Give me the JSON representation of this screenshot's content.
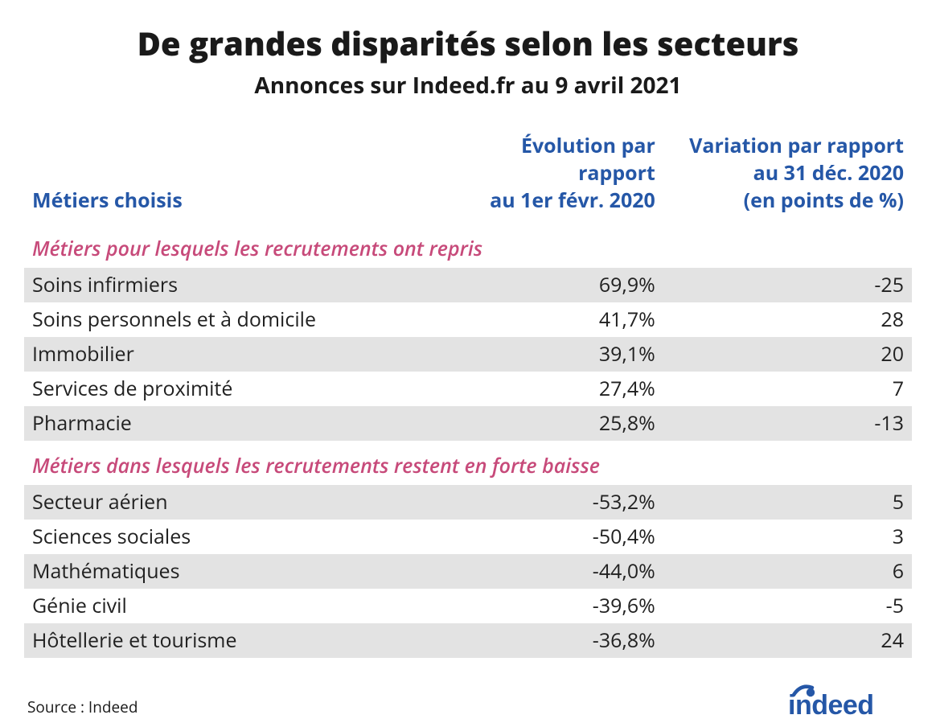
{
  "title": "De grandes disparités selon les secteurs",
  "subtitle": "Annonces sur Indeed.fr au 9 avril 2021",
  "columns": {
    "a": "Métiers choisis",
    "b": "Évolution par\nrapport\nau 1er févr. 2020",
    "c": "Variation par rapport\nau 31 déc. 2020\n(en points de %)"
  },
  "sections": [
    {
      "title": "Métiers pour lesquels les recrutements ont repris",
      "rows": [
        {
          "label": "Soins infirmiers",
          "evolution": "69,9%",
          "variation": "-25"
        },
        {
          "label": "Soins personnels et à domicile",
          "evolution": "41,7%",
          "variation": "28"
        },
        {
          "label": "Immobilier",
          "evolution": "39,1%",
          "variation": "20"
        },
        {
          "label": "Services de proximité",
          "evolution": "27,4%",
          "variation": "7"
        },
        {
          "label": "Pharmacie",
          "evolution": "25,8%",
          "variation": "-13"
        }
      ]
    },
    {
      "title": "Métiers dans lesquels les recrutements restent en forte baisse",
      "rows": [
        {
          "label": "Secteur aérien",
          "evolution": "-53,2%",
          "variation": "5"
        },
        {
          "label": "Sciences sociales",
          "evolution": "-50,4%",
          "variation": "3"
        },
        {
          "label": "Mathématiques",
          "evolution": "-44,0%",
          "variation": "6"
        },
        {
          "label": "Génie civil",
          "evolution": "-39,6%",
          "variation": "-5"
        },
        {
          "label": "Hôtellerie et tourisme",
          "evolution": "-36,8%",
          "variation": "24"
        }
      ]
    }
  ],
  "source": "Source : Indeed",
  "logo_text": "indeed",
  "styling": {
    "header_text_color": "#2557a7",
    "section_title_color": "#c74a7a",
    "row_bg_even": "#e3e3e3",
    "row_bg_odd": "#ffffff",
    "title_fontsize": 40,
    "subtitle_fontsize": 28,
    "body_fontsize": 25,
    "logo_color": "#2557a7"
  }
}
